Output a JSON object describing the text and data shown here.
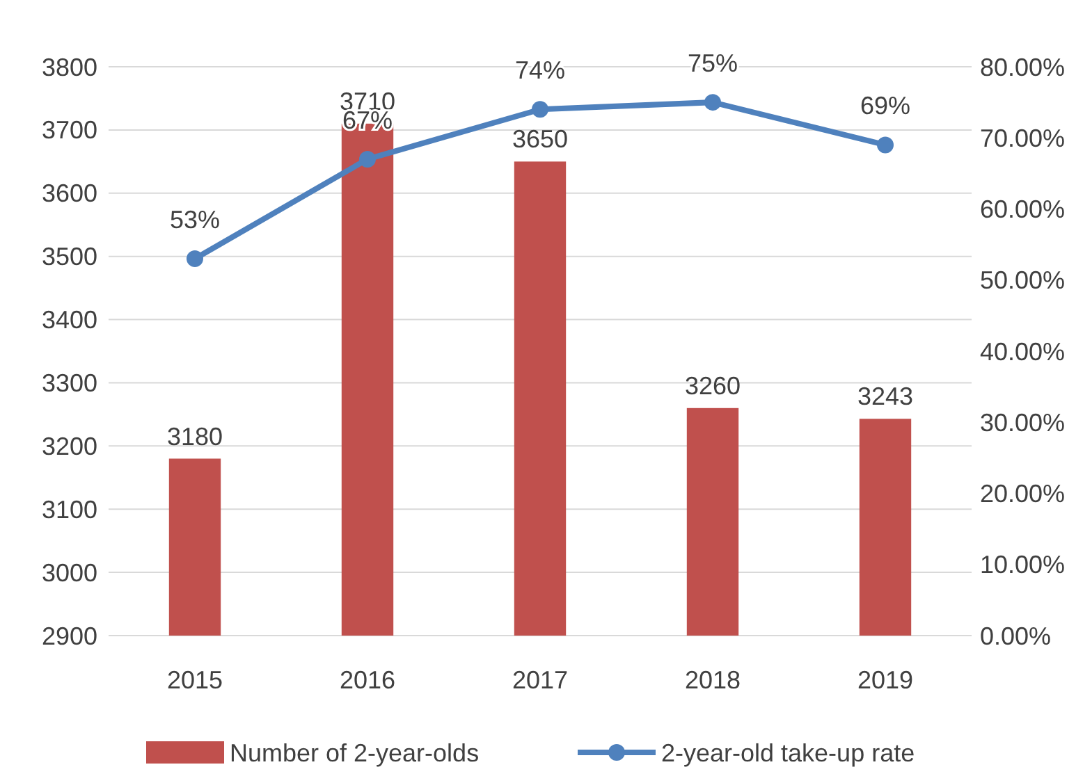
{
  "chart_data": {
    "type": "bar",
    "categories": [
      "2015",
      "2016",
      "2017",
      "2018",
      "2019"
    ],
    "series": [
      {
        "name": "Number of 2-year-olds",
        "color": "#c0504d",
        "values": [
          3180,
          3710,
          3650,
          3260,
          3243
        ],
        "value_labels": [
          "3180",
          "3710",
          "3650",
          "3260",
          "3243"
        ]
      },
      {
        "name": "2-year-old take-up rate",
        "type": "line",
        "axis": "y2",
        "color": "#4f81bd",
        "values": [
          53,
          67,
          74,
          75,
          69
        ],
        "value_labels": [
          "53%",
          "67%",
          "74%",
          "75%",
          "69%"
        ],
        "marker": "circle"
      }
    ],
    "ylim": [
      2900,
      3800
    ],
    "yticks": [
      2900,
      3000,
      3100,
      3200,
      3300,
      3400,
      3500,
      3600,
      3700,
      3800
    ],
    "y2lim": [
      0,
      80
    ],
    "y2ticks": [
      {
        "value": 0,
        "label": "0.00%"
      },
      {
        "value": 10,
        "label": "10.00%"
      },
      {
        "value": 20,
        "label": "20.00%"
      },
      {
        "value": 30,
        "label": "30.00%"
      },
      {
        "value": 40,
        "label": "40.00%"
      },
      {
        "value": 50,
        "label": "50.00%"
      },
      {
        "value": 60,
        "label": "60.00%"
      },
      {
        "value": 70,
        "label": "70.00%"
      },
      {
        "value": 80,
        "label": "80.00%"
      }
    ],
    "grid": "y",
    "legend": "bottom"
  }
}
